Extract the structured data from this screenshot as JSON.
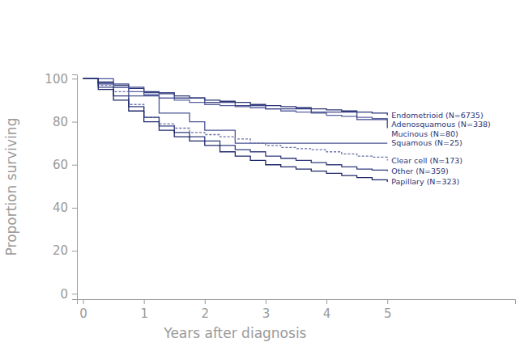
{
  "chart_data": {
    "type": "line",
    "x_label": "Years after diagnosis",
    "y_label": "Proportion surviving",
    "x": [
      0,
      0.25,
      0.5,
      0.75,
      1,
      1.25,
      1.5,
      1.75,
      2,
      2.25,
      2.5,
      2.75,
      3,
      3.25,
      3.5,
      3.75,
      4,
      4.25,
      4.5,
      4.75,
      5
    ],
    "series": [
      {
        "name": "Endometrioid (N=6735)",
        "color": "#2b3576",
        "line_style": "solid",
        "values": [
          100,
          98.5,
          97,
          95.5,
          94,
          93,
          92,
          91,
          90,
          89.5,
          89,
          88,
          87.5,
          87,
          86.5,
          86,
          85.5,
          85,
          84.5,
          84,
          83
        ]
      },
      {
        "name": "Adenosquamous (N=338)",
        "color": "#5a63a0",
        "line_style": "solid",
        "values": [
          100,
          98,
          96,
          94,
          92.5,
          91,
          90,
          89,
          88,
          87.5,
          87,
          86.5,
          86,
          85,
          84.5,
          84,
          83,
          82.5,
          82,
          81.5,
          81
        ]
      },
      {
        "name": "Mucinous (N=80)",
        "color": "#3c4688",
        "line_style": "solid",
        "values": [
          100,
          97.5,
          97.5,
          96,
          93.5,
          93.5,
          91,
          91,
          89,
          89,
          87.5,
          87.5,
          86,
          86,
          86,
          84.5,
          84.5,
          84.5,
          81,
          81,
          77
        ]
      },
      {
        "name": "Squamous (N=25)",
        "color": "#4a5494",
        "line_style": "solid",
        "values": [
          100,
          100,
          96,
          92,
          92,
          84,
          84,
          80,
          76,
          76,
          70,
          70,
          70,
          70,
          70,
          70,
          70,
          70,
          70,
          70,
          70
        ]
      },
      {
        "name": "Clear cell (N=173)",
        "color": "#6a72a8",
        "line_style": "dashed",
        "values": [
          100,
          97,
          94,
          88,
          82,
          79,
          77,
          75,
          74,
          73,
          72,
          70,
          69,
          68,
          67.5,
          67,
          66,
          65,
          64,
          63.5,
          62
        ]
      },
      {
        "name": "Other (N=359)",
        "color": "#323c7e",
        "line_style": "solid",
        "values": [
          100,
          96,
          92,
          87,
          82,
          78,
          75,
          73,
          71,
          69,
          67,
          66,
          64,
          63,
          62,
          61,
          60,
          59,
          58,
          57.5,
          57
        ]
      },
      {
        "name": "Papillary (N=323)",
        "color": "#1f2868",
        "line_style": "solid",
        "values": [
          100,
          95,
          90,
          85,
          80,
          76,
          73,
          71,
          69,
          66,
          64,
          62,
          60,
          59,
          58,
          57,
          56,
          55,
          54,
          53,
          52
        ]
      }
    ],
    "xlim": [
      -0.1,
      7.1
    ],
    "xticks": [
      0,
      1,
      2,
      3,
      4,
      5
    ],
    "ylim": [
      -2.5,
      102
    ],
    "yticks": [
      0,
      20,
      40,
      60,
      80,
      100
    ],
    "grid": false
  }
}
